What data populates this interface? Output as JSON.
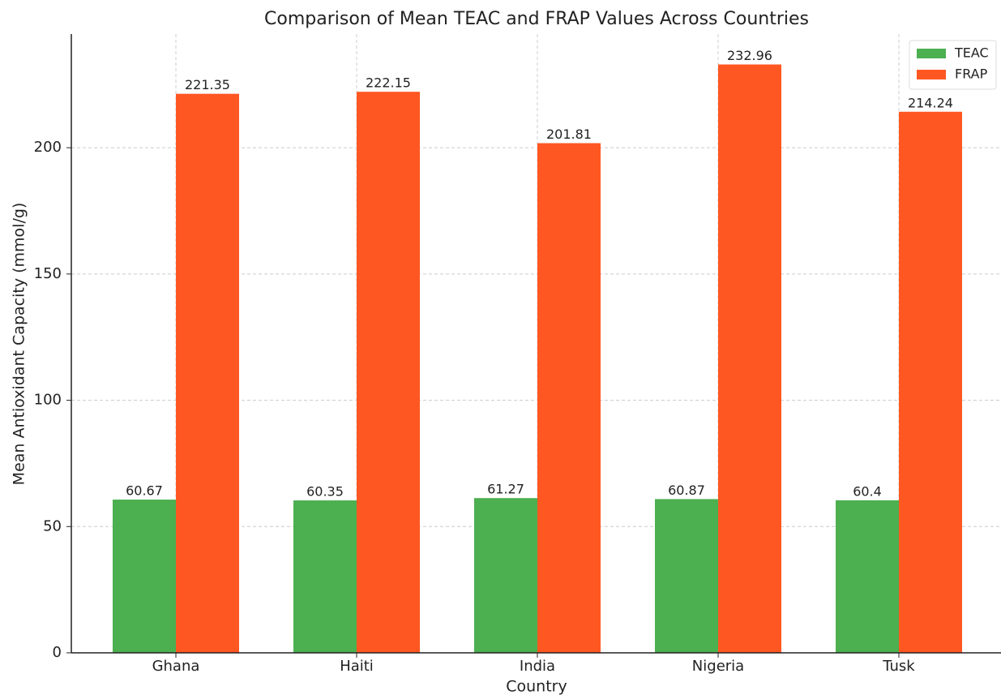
{
  "chart_data": {
    "type": "bar",
    "title": "Comparison of Mean TEAC and FRAP Values Across Countries",
    "x_label": "Country",
    "y_label": "Mean Antioxidant Capacity (mmol/g)",
    "categories": [
      "Ghana",
      "Haiti",
      "India",
      "Nigeria",
      "Tusk"
    ],
    "series": [
      {
        "name": "TEAC",
        "color": "#4caf50",
        "values": [
          60.67,
          60.35,
          61.27,
          60.87,
          60.4
        ]
      },
      {
        "name": "FRAP",
        "color": "#ff5722",
        "values": [
          221.35,
          222.15,
          201.81,
          232.96,
          214.24
        ]
      }
    ],
    "ylim": [
      0,
      245
    ],
    "yticks": [
      0,
      50,
      100,
      150,
      200
    ],
    "grid": true,
    "legend": "upper right"
  }
}
